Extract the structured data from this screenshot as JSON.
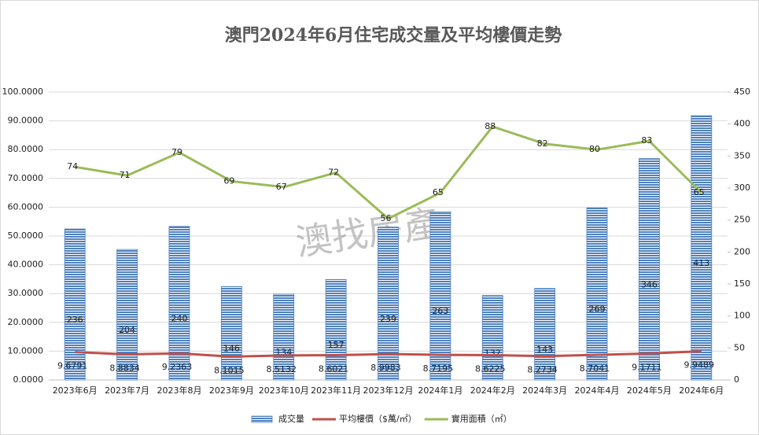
{
  "chart_data": {
    "type": "bar",
    "title": "澳門2024年6月住宅成交量及平均樓價走勢",
    "watermark": "澳找房產",
    "categories": [
      "2023年6月",
      "2023年7月",
      "2023年8月",
      "2023年9月",
      "2023年10月",
      "2023年11月",
      "2023年12月",
      "2024年1月",
      "2024年2月",
      "2024年3月",
      "2024年4月",
      "2024年5月",
      "2024年6月"
    ],
    "series": [
      {
        "name": "成交量",
        "type": "bar",
        "axis": "y2",
        "color": "#4f81bd",
        "values": [
          236,
          204,
          240,
          146,
          134,
          157,
          239,
          263,
          132,
          143,
          269,
          346,
          413
        ]
      },
      {
        "name": "平均樓價（$萬/㎡）",
        "type": "line",
        "color": "#c0504d",
        "values": [
          9.6791,
          8.8834,
          9.2363,
          8.1015,
          8.5132,
          8.6021,
          8.9983,
          8.7195,
          8.6225,
          8.2734,
          8.7041,
          9.1711,
          9.9489
        ]
      },
      {
        "name": "實用面積（㎡）",
        "type": "line",
        "color": "#9bbb59",
        "values": [
          74,
          71,
          79,
          69,
          67,
          72,
          56,
          65,
          88,
          82,
          80,
          83,
          65
        ]
      }
    ],
    "ylim": [
      0,
      100
    ],
    "yticks": [
      {
        "value": 0,
        "label": "0.0000"
      },
      {
        "value": 10,
        "label": "10.0000"
      },
      {
        "value": 20,
        "label": "20.0000"
      },
      {
        "value": 30,
        "label": "30.0000"
      },
      {
        "value": 40,
        "label": "40.0000"
      },
      {
        "value": 50,
        "label": "50.0000"
      },
      {
        "value": 60,
        "label": "60.0000"
      },
      {
        "value": 70,
        "label": "70.0000"
      },
      {
        "value": 80,
        "label": "80.0000"
      },
      {
        "value": 90,
        "label": "90.0000"
      },
      {
        "value": 100,
        "label": "100.0000"
      }
    ],
    "y2lim": [
      0,
      450
    ],
    "y2ticks": [
      0,
      50,
      100,
      150,
      200,
      250,
      300,
      350,
      400,
      450
    ],
    "grid": true,
    "legend": "bottom"
  }
}
